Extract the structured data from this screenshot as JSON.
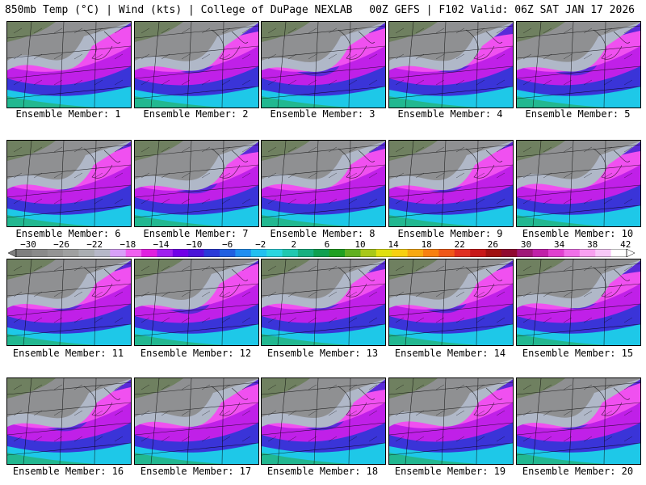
{
  "header": {
    "left": "850mb Temp (°C) | Wind (kts) | College of DuPage NEXLAB",
    "right": "00Z GEFS | F102 Valid: 06Z SAT JAN 17 2026"
  },
  "colorbar": {
    "labels": [
      "−30",
      "−26",
      "−22",
      "−18",
      "−14",
      "−10",
      "−6",
      "−2",
      "2",
      "6",
      "10",
      "14",
      "18",
      "22",
      "26",
      "30",
      "34",
      "38",
      "42"
    ],
    "colors": [
      "#7f7f7f",
      "#8a8a8a",
      "#949494",
      "#9fa0a0",
      "#aaaeb2",
      "#b6b8c8",
      "#d8a0f8",
      "#f060f0",
      "#e020e0",
      "#a020f0",
      "#7000e8",
      "#4a14d8",
      "#2a3ad8",
      "#2060e0",
      "#1f8ef0",
      "#22c0f0",
      "#2bd6e0",
      "#20c8b0",
      "#18b080",
      "#10a050",
      "#20a020",
      "#60b020",
      "#a8c818",
      "#e0e010",
      "#f8d010",
      "#f8a810",
      "#f88010",
      "#f05818",
      "#e03020",
      "#c81818",
      "#a01010",
      "#900a30",
      "#a01878",
      "#c020a8",
      "#e040d0",
      "#f070e8",
      "#f8a0f0",
      "#f8c8f8",
      "#ffffff"
    ]
  },
  "panels": [
    {
      "label": "Ensemble Member: 1"
    },
    {
      "label": "Ensemble Member: 2"
    },
    {
      "label": "Ensemble Member: 3"
    },
    {
      "label": "Ensemble Member: 4"
    },
    {
      "label": "Ensemble Member: 5"
    },
    {
      "label": "Ensemble Member: 6"
    },
    {
      "label": "Ensemble Member: 7"
    },
    {
      "label": "Ensemble Member: 8"
    },
    {
      "label": "Ensemble Member: 9"
    },
    {
      "label": "Ensemble Member: 10"
    },
    {
      "label": "Ensemble Member: 11"
    },
    {
      "label": "Ensemble Member: 12"
    },
    {
      "label": "Ensemble Member: 13"
    },
    {
      "label": "Ensemble Member: 14"
    },
    {
      "label": "Ensemble Member: 15"
    },
    {
      "label": "Ensemble Member: 16"
    },
    {
      "label": "Ensemble Member: 17"
    },
    {
      "label": "Ensemble Member: 18"
    },
    {
      "label": "Ensemble Member: 19"
    },
    {
      "label": "Ensemble Member: 20"
    }
  ]
}
